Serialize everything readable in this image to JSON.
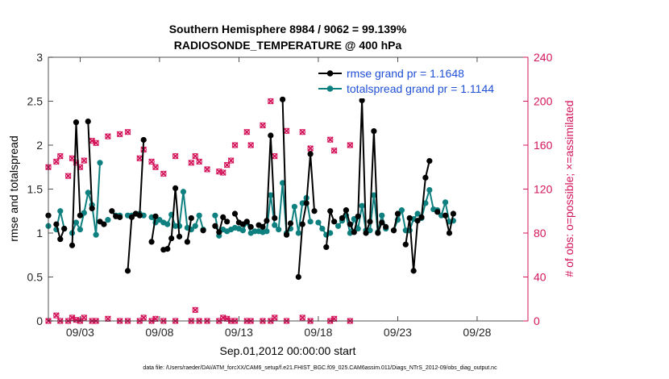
{
  "chart_data": {
    "type": "line",
    "title": "Southern Hemisphere 8984 / 9062 = 99.139%",
    "subtitle": "RADIOSONDE_TEMPERATURE @ 400 hPa",
    "xlabel": "Sep.01,2012 00:00:00 start",
    "ylabel_left": "rmse and totalspread",
    "ylabel_right": "# of obs: o=possible; ×=assimilated",
    "ylim_left": [
      0,
      3
    ],
    "ylim_right": [
      0,
      240
    ],
    "xlim_days": [
      1.0,
      31.2
    ],
    "x_ticks": [
      {
        "day": 3,
        "label": "09/03"
      },
      {
        "day": 8,
        "label": "09/08"
      },
      {
        "day": 13,
        "label": "09/13"
      },
      {
        "day": 18,
        "label": "09/18"
      },
      {
        "day": 23,
        "label": "09/23"
      },
      {
        "day": 28,
        "label": "09/28"
      }
    ],
    "y_ticks_left": [
      "0",
      "0.5",
      "1",
      "1.5",
      "2",
      "2.5",
      "3"
    ],
    "y_ticks_right": [
      "0",
      "40",
      "80",
      "120",
      "160",
      "200",
      "240"
    ],
    "legend": [
      {
        "label": "rmse grand pr = 1.1648",
        "color": "#000000"
      },
      {
        "label": "totalspread grand pr = 1.1144",
        "color": "#0f8080"
      }
    ],
    "colors": {
      "rmse": "#000000",
      "spread": "#0f8080",
      "obs": "#d4145a",
      "legend_text": "#1f50d6"
    },
    "x_days": [
      1.0,
      1.25,
      1.5,
      1.75,
      2.0,
      2.25,
      2.5,
      2.75,
      3.0,
      3.25,
      3.5,
      3.75,
      4.0,
      4.25,
      4.5,
      4.75,
      5.0,
      5.25,
      5.5,
      5.75,
      6.0,
      6.25,
      6.5,
      6.75,
      7.0,
      7.25,
      7.5,
      7.75,
      8.0,
      8.25,
      8.5,
      8.75,
      9.0,
      9.25,
      9.5,
      9.75,
      10.0,
      10.25,
      10.5,
      10.75,
      11.0,
      11.25,
      11.5,
      11.75,
      12.0,
      12.25,
      12.5,
      12.75,
      13.0,
      13.25,
      13.5,
      13.75,
      14.0,
      14.25,
      14.5,
      14.75,
      15.0,
      15.25,
      15.5,
      15.75,
      16.0,
      16.25,
      16.5,
      16.75,
      17.0,
      17.25,
      17.5,
      17.75,
      18.0,
      18.25,
      18.5,
      18.75,
      19.0,
      19.25,
      19.5,
      19.75,
      20.0,
      20.25,
      20.5,
      20.75,
      21.0,
      21.25,
      21.5,
      21.75,
      22.0,
      22.25,
      22.5,
      22.75,
      23.0,
      23.25,
      23.5,
      23.75,
      24.0,
      24.25,
      24.5,
      24.75,
      25.0,
      25.25,
      25.5,
      25.75,
      26.0,
      26.25,
      26.5,
      26.75,
      27.0,
      27.25,
      27.5,
      27.75,
      28.0,
      28.25,
      28.5,
      28.75,
      29.0,
      29.25,
      29.5,
      29.75,
      30.0,
      30.25,
      30.5,
      30.75,
      31.0
    ],
    "rmse": [
      1.2,
      null,
      1.1,
      0.93,
      1.05,
      null,
      0.86,
      2.26,
      1.2,
      null,
      2.27,
      1.28,
      null,
      1.13,
      1.1,
      null,
      1.25,
      1.19,
      1.18,
      null,
      0.57,
      1.18,
      1.22,
      1.2,
      2.06,
      null,
      0.9,
      1.19,
      null,
      0.81,
      0.82,
      0.94,
      1.51,
      0.96,
      null,
      0.9,
      1.17,
      null,
      null,
      1.03,
      null,
      null,
      1.08,
      1.01,
      1.18,
      1.13,
      null,
      1.22,
      1.12,
      1.1,
      1.13,
      1.07,
      null,
      1.09,
      1.07,
      1.14,
      2.11,
      1.17,
      null,
      2.52,
      0.98,
      1.11,
      null,
      0.5,
      1.1,
      1.34,
      1.9,
      1.25,
      null,
      null,
      0.84,
      1.25,
      1.13,
      null,
      1.17,
      1.26,
      1.1,
      1.01,
      1.19,
      2.51,
      1.0,
      1.13,
      2.16,
      1.0,
      1.12,
      1.07,
      null,
      1.03,
      1.22,
      null,
      0.87,
      1.17,
      0.57,
      1.14,
      1.18,
      1.63,
      1.82,
      null,
      1.24,
      null,
      1.2,
      1.0,
      1.22
    ],
    "spread": [
      1.08,
      null,
      1.04,
      1.25,
      1.05,
      null,
      1.0,
      1.12,
      1.04,
      1.23,
      1.46,
      1.32,
      0.98,
      1.8,
      null,
      1.15,
      null,
      1.2,
      1.2,
      null,
      1.2,
      1.2,
      1.22,
      1.22,
      1.2,
      null,
      1.18,
      1.12,
      1.15,
      1.12,
      1.1,
      1.21,
      1.08,
      1.08,
      1.47,
      1.06,
      1.04,
      1.08,
      1.2,
      1.04,
      null,
      null,
      1.2,
      0.97,
      1.04,
      1.02,
      1.04,
      1.06,
      1.05,
      1.03,
      1.12,
      1.0,
      1.02,
      1.02,
      1.01,
      1.02,
      1.43,
      1.09,
      1.04,
      1.57,
      1.0,
      1.05,
      1.3,
      1.0,
      1.34,
      1.4,
      1.13,
      null,
      1.12,
      1.05,
      0.98,
      1.0,
      null,
      1.08,
      1.14,
      1.2,
      1.0,
      1.16,
      1.05,
      1.31,
      1.03,
      1.03,
      1.43,
      1.01,
      1.2,
      1.05,
      null,
      1.03,
      1.15,
      1.26,
      1.03,
      1.03,
      1.16,
      1.22,
      1.17,
      1.34,
      1.49,
      1.27,
      1.26,
      1.2,
      1.35,
      1.13,
      1.14
    ],
    "obs_high_possible": [
      140,
      null,
      145,
      150,
      null,
      132,
      148,
      144,
      140,
      146,
      null,
      164,
      162,
      null,
      null,
      168,
      null,
      null,
      170,
      null,
      172,
      null,
      null,
      148,
      156,
      null,
      145,
      140,
      null,
      134,
      null,
      null,
      150,
      null,
      null,
      null,
      144,
      150,
      145,
      null,
      138,
      null,
      null,
      136,
      135,
      142,
      146,
      160,
      null,
      null,
      172,
      160,
      null,
      null,
      178,
      null,
      200,
      150,
      null,
      null,
      173,
      null,
      null,
      null,
      172,
      null,
      157,
      null,
      null,
      null,
      null,
      165,
      155,
      null,
      null,
      null,
      160,
      null,
      null,
      null,
      null,
      null,
      null,
      null,
      null,
      null,
      null,
      null,
      null,
      null,
      null,
      null,
      null,
      null,
      null,
      null,
      null,
      null,
      null,
      null,
      null,
      null,
      null
    ],
    "obs_low": [
      0,
      null,
      5,
      0,
      null,
      0,
      3,
      1,
      0,
      3,
      null,
      0,
      0,
      null,
      null,
      2,
      null,
      null,
      0,
      null,
      0,
      null,
      null,
      0,
      3,
      null,
      0,
      2,
      null,
      0,
      null,
      null,
      0,
      null,
      null,
      null,
      0,
      10,
      0,
      null,
      0,
      null,
      null,
      0,
      3,
      2,
      0,
      0,
      null,
      null,
      0,
      0,
      null,
      null,
      0,
      null,
      0,
      3,
      null,
      null,
      0,
      null,
      null,
      null,
      3,
      null,
      0,
      null,
      null,
      null,
      null,
      0,
      2,
      null,
      null,
      null,
      0,
      null,
      null,
      null,
      null,
      null,
      null,
      null,
      null,
      null,
      null,
      null,
      null,
      null,
      null,
      null,
      null,
      null,
      null,
      null,
      null,
      null,
      null,
      null,
      null,
      null,
      null
    ],
    "grid": false
  },
  "footnote": "data file: /Users/raeder/DAI/ATM_forcXX/CAM6_setup/f.e21.FHIST_BGC.f09_025.CAM6assim.011/Diags_NTrS_2012-09/obs_diag_output.nc"
}
